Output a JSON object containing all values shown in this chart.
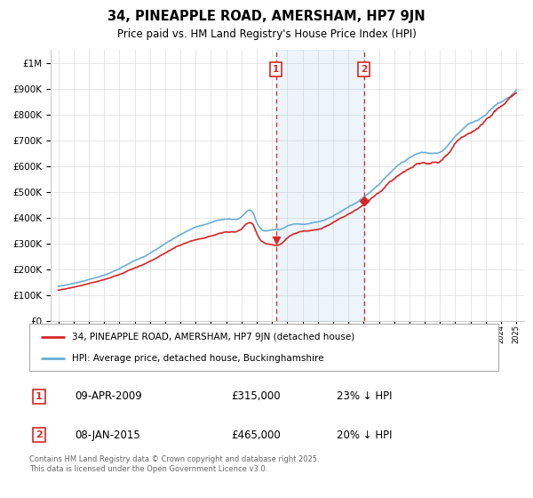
{
  "title": "34, PINEAPPLE ROAD, AMERSHAM, HP7 9JN",
  "subtitle": "Price paid vs. HM Land Registry's House Price Index (HPI)",
  "hpi_color": "#6baed6",
  "price_color": "#d62728",
  "annotation1": {
    "label": "1",
    "date": "09-APR-2009",
    "price": "£315,000",
    "pct": "23% ↓ HPI"
  },
  "annotation2": {
    "label": "2",
    "date": "08-JAN-2015",
    "price": "£465,000",
    "pct": "20% ↓ HPI"
  },
  "legend_line1": "34, PINEAPPLE ROAD, AMERSHAM, HP7 9JN (detached house)",
  "legend_line2": "HPI: Average price, detached house, Buckinghamshire",
  "footnote": "Contains HM Land Registry data © Crown copyright and database right 2025.\nThis data is licensed under the Open Government Licence v3.0.",
  "sale1_year": 2009.27,
  "sale1_price": 315000,
  "sale2_year": 2015.03,
  "sale2_price": 465000,
  "ylim": [
    0,
    1050000
  ],
  "xlim_left": 1994.5,
  "xlim_right": 2025.5,
  "grid_color": "#dddddd",
  "plot_bg": "#ffffff"
}
